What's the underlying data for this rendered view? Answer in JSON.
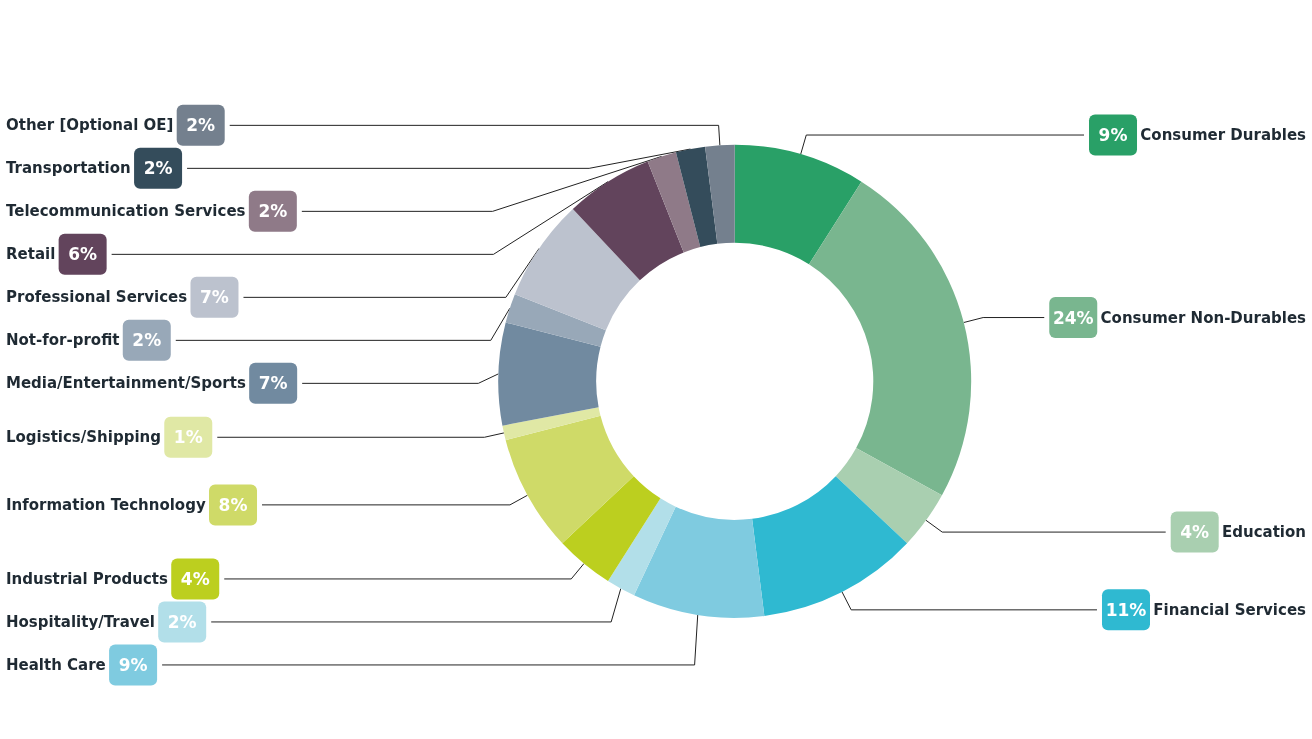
{
  "chart_data": {
    "type": "donut",
    "categories": [
      "Consumer Durables",
      "Consumer Non-Durables",
      "Education",
      "Financial Services",
      "Health Care",
      "Hospitality/Travel",
      "Industrial Products",
      "Information Technology",
      "Logistics/Shipping",
      "Media/Entertainment/Sports",
      "Not-for-profit",
      "Professional Services",
      "Retail",
      "Telecommunication Services",
      "Transportation",
      "Other [Optional OE]"
    ],
    "values": [
      9,
      24,
      4,
      11,
      9,
      2,
      4,
      8,
      1,
      7,
      2,
      7,
      6,
      2,
      2,
      2
    ],
    "value_labels": [
      "9%",
      "24%",
      "4%",
      "11%",
      "9%",
      "2%",
      "4%",
      "8%",
      "1%",
      "7%",
      "2%",
      "7%",
      "6%",
      "2%",
      "2%",
      "2%"
    ],
    "colors": [
      "#29a067",
      "#79b68f",
      "#a9cfb0",
      "#2fb9d1",
      "#7fcbe0",
      "#b2dfe9",
      "#bccf1f",
      "#cfda68",
      "#e0e8a5",
      "#718aa0",
      "#98a8b8",
      "#bcc2ce",
      "#62445c",
      "#8f7a88",
      "#344c5b",
      "#74808e"
    ],
    "legend": false
  }
}
